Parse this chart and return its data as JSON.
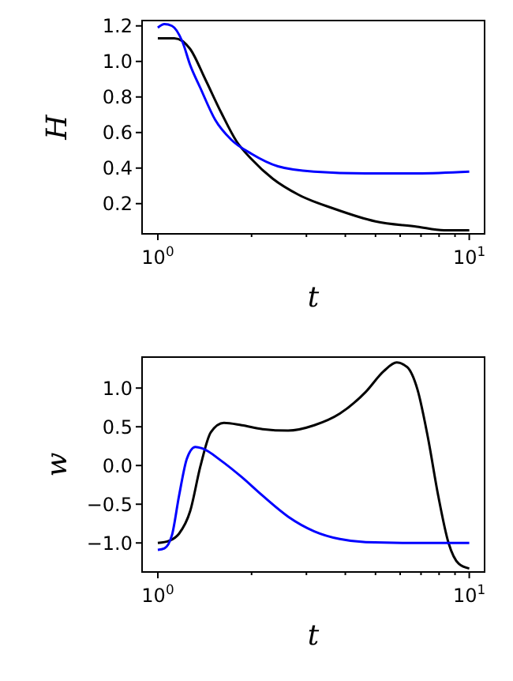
{
  "chart_data": [
    {
      "type": "line",
      "xlabel": "t",
      "ylabel": "H",
      "log": "x",
      "xlim": [
        0.89,
        11.2
      ],
      "ylim": [
        0.03,
        1.23
      ],
      "xticks": [
        {
          "value": 1,
          "label": "10$^{0}$"
        },
        {
          "value": 2,
          "label": null
        },
        {
          "value": 3,
          "label": null
        },
        {
          "value": 4,
          "label": null
        },
        {
          "value": 5,
          "label": null
        },
        {
          "value": 6,
          "label": null
        },
        {
          "value": 7,
          "label": null
        },
        {
          "value": 8,
          "label": null
        },
        {
          "value": 9,
          "label": null
        },
        {
          "value": 10,
          "label": "10$^{1}$"
        }
      ],
      "yticks": [
        {
          "value": 0.2,
          "label": "0.2"
        },
        {
          "value": 0.4,
          "label": "0.4"
        },
        {
          "value": 0.6,
          "label": "0.6"
        },
        {
          "value": 0.8,
          "label": "0.8"
        },
        {
          "value": 1,
          "label": "1.0"
        },
        {
          "value": 1.2,
          "label": "1.2"
        }
      ],
      "series": [
        {
          "color": "#000000",
          "x": [
            1,
            1.13,
            1.27,
            1.42,
            1.6,
            1.79,
            2,
            2.34,
            2.83,
            3.7,
            5,
            6.8,
            8.3,
            10
          ],
          "values": [
            1.13,
            1.13,
            1.07,
            0.9,
            0.71,
            0.55,
            0.45,
            0.34,
            0.25,
            0.17,
            0.1,
            0.07,
            0.05,
            0.05
          ]
        },
        {
          "color": "#0000ff",
          "x": [
            1,
            1.05,
            1.11,
            1.2,
            1.27,
            1.37,
            1.53,
            1.72,
            2,
            2.43,
            3.17,
            4.65,
            6.8,
            10
          ],
          "values": [
            1.19,
            1.21,
            1.2,
            1.11,
            0.98,
            0.85,
            0.67,
            0.56,
            0.48,
            0.41,
            0.38,
            0.37,
            0.37,
            0.38
          ]
        }
      ]
    },
    {
      "type": "line",
      "xlabel": "t",
      "ylabel": "w",
      "log": "x",
      "xlim": [
        0.89,
        11.2
      ],
      "ylim": [
        -1.375,
        1.4
      ],
      "xticks": [
        {
          "value": 1,
          "label": "10$^{0}$"
        },
        {
          "value": 2,
          "label": null
        },
        {
          "value": 3,
          "label": null
        },
        {
          "value": 4,
          "label": null
        },
        {
          "value": 5,
          "label": null
        },
        {
          "value": 6,
          "label": null
        },
        {
          "value": 7,
          "label": null
        },
        {
          "value": 8,
          "label": null
        },
        {
          "value": 9,
          "label": null
        },
        {
          "value": 10,
          "label": "10$^{1}$"
        }
      ],
      "yticks": [
        {
          "value": -1,
          "label": "−1.0"
        },
        {
          "value": -0.5,
          "label": "−0.5"
        },
        {
          "value": 0,
          "label": "0.0"
        },
        {
          "value": 0.5,
          "label": "0.5"
        },
        {
          "value": 1,
          "label": "1.0"
        }
      ],
      "series": [
        {
          "color": "#000000",
          "x": [
            1,
            1.09,
            1.17,
            1.27,
            1.37,
            1.48,
            1.63,
            1.86,
            2.17,
            2.62,
            3.18,
            3.84,
            4.65,
            5.32,
            5.85,
            6.32,
            6.82,
            7.36,
            7.95,
            8.58,
            9.26,
            10
          ],
          "values": [
            -1,
            -0.97,
            -0.88,
            -0.59,
            -0.01,
            0.43,
            0.55,
            0.52,
            0.47,
            0.45,
            0.52,
            0.67,
            0.95,
            1.22,
            1.33,
            1.27,
            0.98,
            0.37,
            -0.39,
            -1,
            -1.27,
            -1.33
          ]
        },
        {
          "color": "#0000ff",
          "x": [
            1,
            1.05,
            1.11,
            1.17,
            1.24,
            1.32,
            1.39,
            1.6,
            1.86,
            2.17,
            2.62,
            3.18,
            3.84,
            4.65,
            6.82,
            10
          ],
          "values": [
            -1.09,
            -1.07,
            -0.9,
            -0.39,
            0.09,
            0.24,
            0.22,
            0.06,
            -0.15,
            -0.39,
            -0.66,
            -0.85,
            -0.95,
            -0.99,
            -1,
            -1
          ]
        }
      ]
    }
  ]
}
